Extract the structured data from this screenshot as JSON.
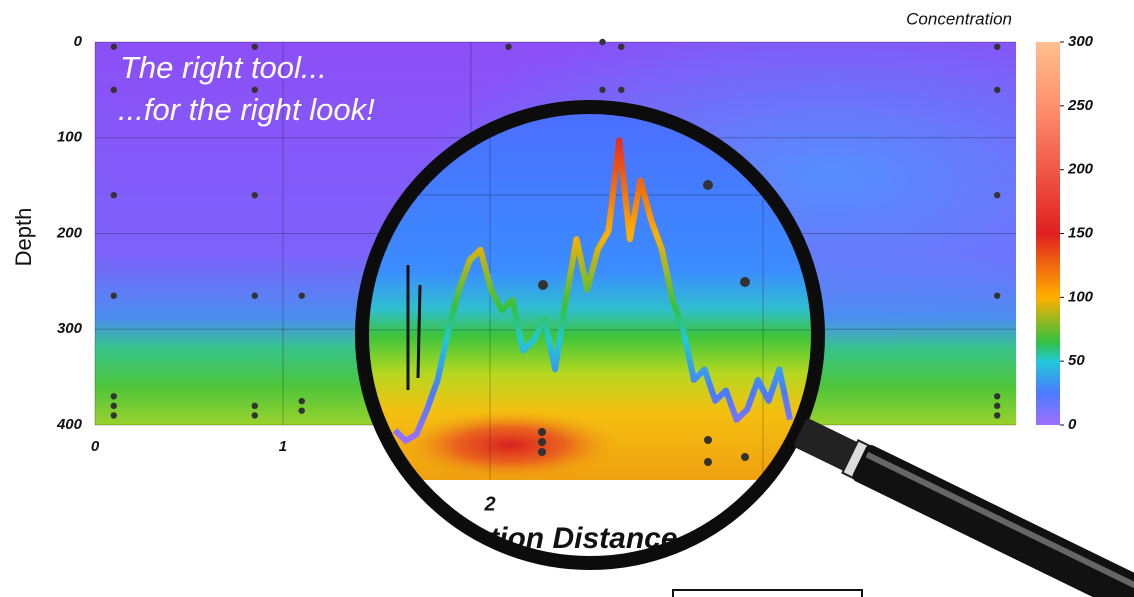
{
  "chart_data": {
    "type": "contour",
    "annotations": [
      "The right tool...",
      "...for the right look!"
    ],
    "x_label": "Station Distance",
    "y_label": "Depth",
    "colorbar_title": "Concentration",
    "xlim": [
      0,
      4.9
    ],
    "xticks": [
      0,
      1,
      2
    ],
    "ylim": [
      400,
      0
    ],
    "yticks": [
      0,
      100,
      200,
      300,
      400
    ],
    "clim": [
      0,
      300
    ],
    "cticks": [
      0,
      50,
      100,
      150,
      200,
      250,
      300
    ],
    "samples": {
      "x": [
        0.1,
        0.1,
        0.1,
        0.1,
        0.1,
        0.1,
        0.1,
        0.85,
        0.85,
        0.85,
        0.85,
        0.85,
        0.85,
        1.1,
        1.1,
        1.1,
        2.2,
        2.7,
        2.7,
        2.8,
        2.8,
        4.8,
        4.8,
        4.8,
        4.8,
        4.8,
        4.8,
        4.8
      ],
      "y": [
        5,
        50,
        160,
        265,
        370,
        380,
        390,
        5,
        50,
        160,
        265,
        380,
        390,
        265,
        375,
        385,
        5,
        0,
        50,
        5,
        50,
        5,
        50,
        160,
        265,
        370,
        380,
        390
      ]
    },
    "profile": {
      "values": [
        7,
        2,
        5,
        17,
        31,
        55,
        74,
        88,
        93,
        74,
        64,
        69,
        45,
        50,
        60,
        36,
        69,
        98,
        74,
        93,
        102,
        145,
        98,
        126,
        107,
        93,
        69,
        55,
        31,
        36,
        21,
        26,
        12,
        17,
        31,
        21,
        36,
        12
      ]
    }
  }
}
